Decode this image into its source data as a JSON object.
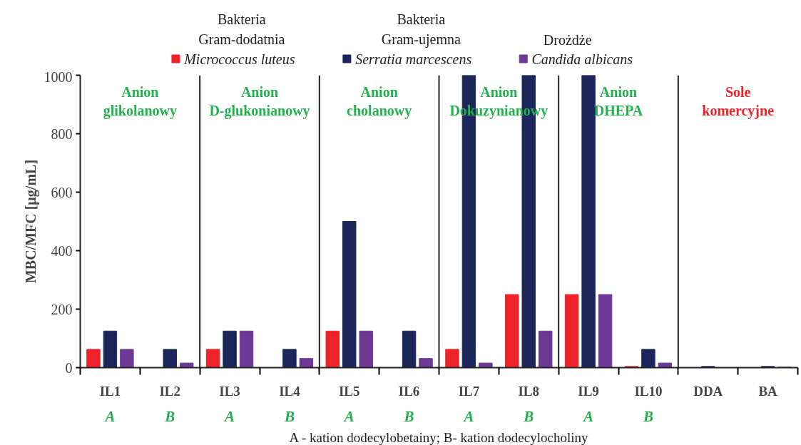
{
  "chart_data": {
    "type": "bar",
    "ylabel": "MBC/MFC [µg/mL]",
    "categories": [
      "IL1",
      "IL2",
      "IL3",
      "IL4",
      "IL5",
      "IL6",
      "IL7",
      "IL8",
      "IL9",
      "IL10",
      "DDA",
      "BA"
    ],
    "series": [
      {
        "name": "Micrococcus luteus",
        "color": "#ee2229",
        "values": [
          62.5,
          null,
          62.5,
          null,
          125,
          null,
          62.5,
          250,
          250,
          4,
          null,
          null
        ]
      },
      {
        "name": "Serratia marcescens",
        "color": "#1b275b",
        "values": [
          125,
          62.5,
          125,
          62.5,
          500,
          125,
          1000,
          1000,
          1000,
          62.5,
          4,
          4
        ]
      },
      {
        "name": "Candida albicans",
        "color": "#6e3996",
        "values": [
          62.5,
          15.6,
          125,
          31.25,
          125,
          31.25,
          15.6,
          125,
          250,
          15.6,
          null,
          2
        ]
      }
    ],
    "ylim": [
      0,
      1000
    ],
    "yticks": [
      0,
      200,
      400,
      600,
      800,
      1000
    ],
    "grid": false,
    "legend": "top",
    "annotations": [
      "Bakteria\nGram-dodatnia",
      "Bakteria\nGram-ujemna",
      "Drożdże",
      "Anion\nglikolanowy",
      "Anion\nD-glukonianowy",
      "Anion\ncholanowy",
      "Anion\nDokuzynianowy",
      "Anion\nDHEPA",
      "Sole\nkomercyjne",
      "A",
      "B",
      "A",
      "B",
      "A",
      "B",
      "A",
      "B",
      "A",
      "B",
      "A - kation dodecylobetainy; B- kation dodecylocholiny"
    ]
  }
}
